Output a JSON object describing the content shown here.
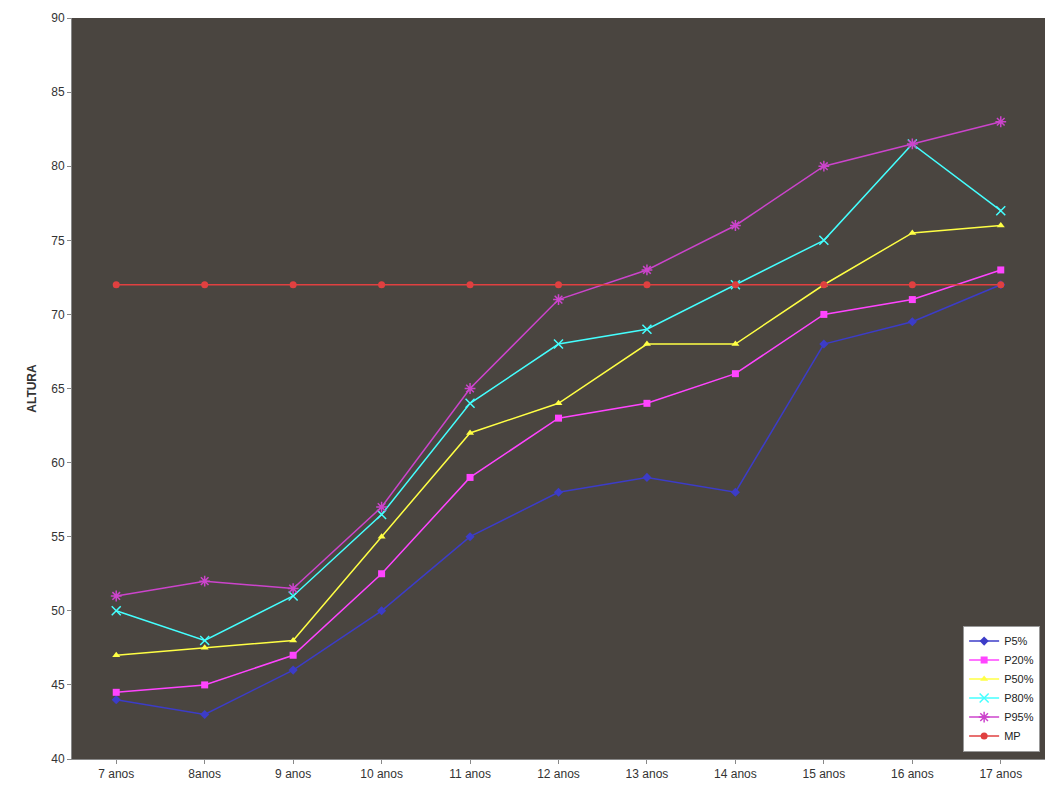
{
  "chart_data": {
    "type": "line",
    "y_label": "ALTURA",
    "categories": [
      "7 anos",
      "8anos",
      "9 anos",
      "10 anos",
      "11 anos",
      "12 anos",
      "13 anos",
      "14 anos",
      "15 anos",
      "16 anos",
      "17 anos"
    ],
    "series": [
      {
        "name": "P5%",
        "color": "#3c3cc8",
        "marker": "diamond",
        "values": [
          44,
          43,
          46,
          50,
          55,
          58,
          59,
          58,
          68,
          69.5,
          72
        ]
      },
      {
        "name": "P20%",
        "color": "#ff44ff",
        "marker": "square",
        "values": [
          44.5,
          45,
          47,
          52.5,
          59,
          63,
          64,
          66,
          70,
          71,
          73
        ]
      },
      {
        "name": "P50%",
        "color": "#ffff44",
        "marker": "triangle",
        "values": [
          47,
          47.5,
          48,
          55,
          62,
          64,
          68,
          68,
          72,
          75.5,
          76
        ]
      },
      {
        "name": "P80%",
        "color": "#44ffff",
        "marker": "x",
        "values": [
          50,
          48,
          51,
          56.5,
          64,
          68,
          69,
          72,
          75,
          81.5,
          77
        ]
      },
      {
        "name": "P95%",
        "color": "#cc44cc",
        "marker": "star",
        "values": [
          51,
          52,
          51.5,
          57,
          65,
          71,
          73,
          76,
          80,
          81.5,
          83
        ]
      },
      {
        "name": "MP",
        "color": "#e04040",
        "marker": "circle",
        "values": [
          72,
          72,
          72,
          72,
          72,
          72,
          72,
          72,
          72,
          72,
          72
        ]
      }
    ],
    "ylim": [
      40,
      90
    ],
    "yticks": [
      40,
      45,
      50,
      55,
      60,
      65,
      70,
      75,
      80,
      85,
      90
    ],
    "grid": false,
    "legend": "lower right"
  }
}
